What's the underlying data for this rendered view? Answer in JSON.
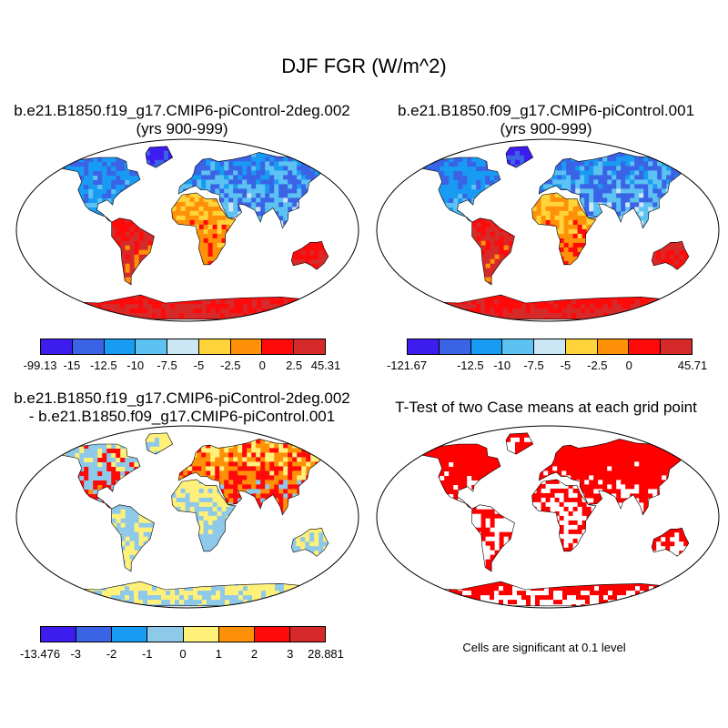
{
  "title": "DJF FGR (W/m^2)",
  "panels": [
    {
      "id": "case1",
      "title_line1": "b.e21.B1850.f19_g17.CMIP6-piControl-2deg.002",
      "title_line2": "(yrs 900-999)"
    },
    {
      "id": "case2",
      "title_line1": "b.e21.B1850.f09_g17.CMIP6-piControl.001",
      "title_line2": "(yrs 900-999)"
    },
    {
      "id": "diff",
      "title_line1": "b.e21.B1850.f19_g17.CMIP6-piControl-2deg.002",
      "title_line2": "- b.e21.B1850.f09_g17.CMIP6-piControl.001"
    },
    {
      "id": "ttest",
      "title_line1": "T-Test of two Case means at each grid point",
      "title_line2": ""
    }
  ],
  "colorbars": {
    "case1": {
      "colors": [
        "#3d1cf0",
        "#3b63e6",
        "#189bf2",
        "#5cc2f2",
        "#cbe6f4",
        "#ffd43a",
        "#ff9108",
        "#ff0a0a",
        "#d62a2a"
      ],
      "labels": [
        "-99.13",
        "-15",
        "-12.5",
        "-10",
        "-7.5",
        "-5",
        "-2.5",
        "0",
        "2.5",
        "45.31"
      ]
    },
    "case2": {
      "colors": [
        "#3d1cf0",
        "#3b63e6",
        "#189bf2",
        "#5cc2f2",
        "#cbe6f4",
        "#ffd43a",
        "#ff9108",
        "#ff0a0a",
        "#d62a2a"
      ],
      "labels": [
        "-121.67",
        "",
        "-12.5",
        "-10",
        "-7.5",
        "-5",
        "-2.5",
        "0",
        "",
        "45.71"
      ]
    },
    "diff": {
      "colors": [
        "#3d1cf0",
        "#3b63e6",
        "#189bf2",
        "#8ec9ea",
        "#fff07a",
        "#ff9108",
        "#ff0a0a",
        "#d62a2a"
      ],
      "labels": [
        "-13.476",
        "-3",
        "-2",
        "-1",
        "0",
        "1",
        "2",
        "3",
        "28.881"
      ]
    }
  },
  "significance_note": "Cells are significant at 0.1 level",
  "colors": {
    "significant": "#ff0000",
    "outline": "#000000"
  }
}
